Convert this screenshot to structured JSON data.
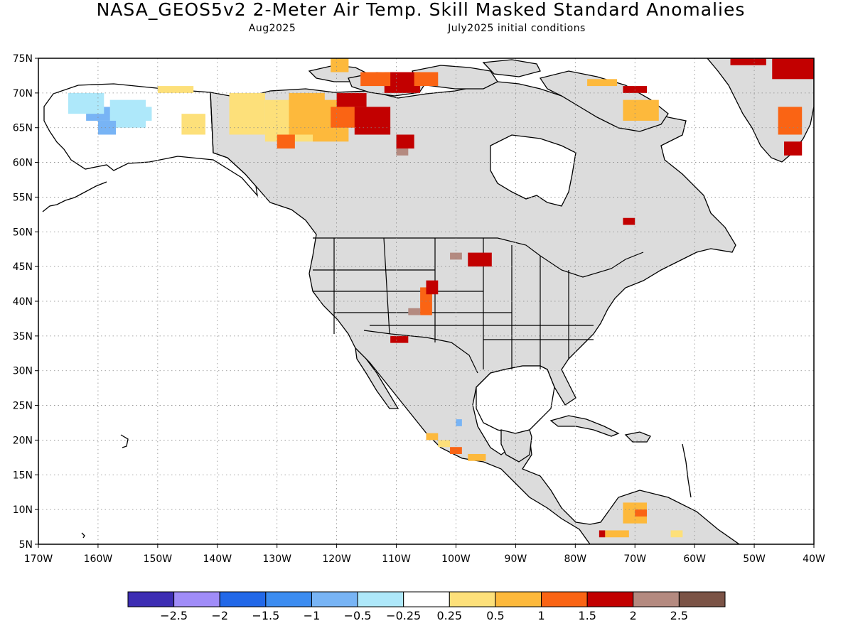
{
  "title": "NASA_GEOS5v2 2-Meter Air Temp. Skill Masked Standard Anomalies",
  "subtitle_left": "Aug2025",
  "subtitle_right": "July2025 initial conditions",
  "map": {
    "projection": "lat-lon",
    "lat_range": [
      5,
      75
    ],
    "lon_range": [
      -170,
      -40
    ],
    "grid": "dotted",
    "mask_color": "#dcdcdc",
    "land_outline_color": "#000000",
    "lat_ticks": [
      {
        "value": 75,
        "label": "75N"
      },
      {
        "value": 70,
        "label": "70N"
      },
      {
        "value": 65,
        "label": "65N"
      },
      {
        "value": 60,
        "label": "60N"
      },
      {
        "value": 55,
        "label": "55N"
      },
      {
        "value": 50,
        "label": "50N"
      },
      {
        "value": 45,
        "label": "45N"
      },
      {
        "value": 40,
        "label": "40N"
      },
      {
        "value": 35,
        "label": "35N"
      },
      {
        "value": 30,
        "label": "30N"
      },
      {
        "value": 25,
        "label": "25N"
      },
      {
        "value": 20,
        "label": "20N"
      },
      {
        "value": 15,
        "label": "15N"
      },
      {
        "value": 10,
        "label": "10N"
      },
      {
        "value": 5,
        "label": "5N"
      }
    ],
    "lon_ticks": [
      {
        "value": -170,
        "label": "170W"
      },
      {
        "value": -160,
        "label": "160W"
      },
      {
        "value": -150,
        "label": "150W"
      },
      {
        "value": -140,
        "label": "140W"
      },
      {
        "value": -130,
        "label": "130W"
      },
      {
        "value": -120,
        "label": "120W"
      },
      {
        "value": -110,
        "label": "110W"
      },
      {
        "value": -100,
        "label": "100W"
      },
      {
        "value": -90,
        "label": "90W"
      },
      {
        "value": -80,
        "label": "80W"
      },
      {
        "value": -70,
        "label": "70W"
      },
      {
        "value": -60,
        "label": "60W"
      },
      {
        "value": -50,
        "label": "50W"
      },
      {
        "value": -40,
        "label": "40W"
      }
    ]
  },
  "colorbar": {
    "colors": [
      "#3d2db3",
      "#a08cf8",
      "#2268e8",
      "#3c8cf0",
      "#78b4f5",
      "#aee8fa",
      "#ffffff",
      "#fde07a",
      "#fdb93c",
      "#fa6414",
      "#c20000",
      "#b48a80",
      "#7b5346"
    ],
    "labels": [
      "-2.5",
      "-2",
      "-1.5",
      "-1",
      "-0.5",
      "-0.25",
      "0.25",
      "0.5",
      "1",
      "1.5",
      "2",
      "2.5"
    ]
  },
  "anomalies": [
    {
      "lon": -162,
      "lat": 66,
      "w": 6,
      "h": 2,
      "c": "#78b4f5"
    },
    {
      "lon": -165,
      "lat": 67,
      "w": 6,
      "h": 3,
      "c": "#aee8fa"
    },
    {
      "lon": -158,
      "lat": 65,
      "w": 6,
      "h": 4,
      "c": "#aee8fa"
    },
    {
      "lon": -160,
      "lat": 64,
      "w": 3,
      "h": 2,
      "c": "#78b4f5"
    },
    {
      "lon": -154,
      "lat": 66,
      "w": 3,
      "h": 2,
      "c": "#aee8fa"
    },
    {
      "lon": -146,
      "lat": 64,
      "w": 4,
      "h": 3,
      "c": "#fde07a"
    },
    {
      "lon": -150,
      "lat": 70,
      "w": 6,
      "h": 1,
      "c": "#fde07a"
    },
    {
      "lon": -138,
      "lat": 64,
      "w": 6,
      "h": 6,
      "c": "#fde07a"
    },
    {
      "lon": -132,
      "lat": 63,
      "w": 8,
      "h": 6,
      "c": "#fde07a"
    },
    {
      "lon": -128,
      "lat": 64,
      "w": 6,
      "h": 6,
      "c": "#fdb93c"
    },
    {
      "lon": -124,
      "lat": 63,
      "w": 6,
      "h": 6,
      "c": "#fdb93c"
    },
    {
      "lon": -121,
      "lat": 65,
      "w": 6,
      "h": 3,
      "c": "#fa6414"
    },
    {
      "lon": -130,
      "lat": 62,
      "w": 3,
      "h": 2,
      "c": "#fa6414"
    },
    {
      "lon": -117,
      "lat": 64,
      "w": 6,
      "h": 4,
      "c": "#c20000"
    },
    {
      "lon": -120,
      "lat": 68,
      "w": 5,
      "h": 2,
      "c": "#c20000"
    },
    {
      "lon": -110,
      "lat": 62,
      "w": 3,
      "h": 2,
      "c": "#c20000"
    },
    {
      "lon": -110,
      "lat": 61,
      "w": 2,
      "h": 1,
      "c": "#b48a80"
    },
    {
      "lon": -112,
      "lat": 70,
      "w": 6,
      "h": 3,
      "c": "#c20000"
    },
    {
      "lon": -116,
      "lat": 71,
      "w": 5,
      "h": 2,
      "c": "#fa6414"
    },
    {
      "lon": -107,
      "lat": 71,
      "w": 4,
      "h": 2,
      "c": "#fa6414"
    },
    {
      "lon": -121,
      "lat": 73,
      "w": 3,
      "h": 2,
      "c": "#fdb93c"
    },
    {
      "lon": -78,
      "lat": 71,
      "w": 5,
      "h": 1,
      "c": "#fdb93c"
    },
    {
      "lon": -72,
      "lat": 66,
      "w": 6,
      "h": 3,
      "c": "#fdb93c"
    },
    {
      "lon": -72,
      "lat": 70,
      "w": 4,
      "h": 1,
      "c": "#c20000"
    },
    {
      "lon": -72,
      "lat": 51,
      "w": 2,
      "h": 1,
      "c": "#c20000"
    },
    {
      "lon": -47,
      "lat": 72,
      "w": 7,
      "h": 5,
      "c": "#c20000"
    },
    {
      "lon": -54,
      "lat": 74,
      "w": 6,
      "h": 3,
      "c": "#c20000"
    },
    {
      "lon": -46,
      "lat": 64,
      "w": 4,
      "h": 4,
      "c": "#fa6414"
    },
    {
      "lon": -45,
      "lat": 61,
      "w": 3,
      "h": 2,
      "c": "#c20000"
    },
    {
      "lon": -98,
      "lat": 45,
      "w": 4,
      "h": 2,
      "c": "#c20000"
    },
    {
      "lon": -101,
      "lat": 46,
      "w": 2,
      "h": 1,
      "c": "#b48a80"
    },
    {
      "lon": -106,
      "lat": 38,
      "w": 2,
      "h": 4,
      "c": "#fa6414"
    },
    {
      "lon": -105,
      "lat": 41,
      "w": 2,
      "h": 2,
      "c": "#c20000"
    },
    {
      "lon": -108,
      "lat": 38,
      "w": 2,
      "h": 1,
      "c": "#b48a80"
    },
    {
      "lon": -111,
      "lat": 34,
      "w": 3,
      "h": 1,
      "c": "#c20000"
    },
    {
      "lon": -105,
      "lat": 20,
      "w": 2,
      "h": 1,
      "c": "#fdb93c"
    },
    {
      "lon": -103,
      "lat": 19,
      "w": 2,
      "h": 1,
      "c": "#fde07a"
    },
    {
      "lon": -98,
      "lat": 17,
      "w": 3,
      "h": 1,
      "c": "#fdb93c"
    },
    {
      "lon": -101,
      "lat": 18,
      "w": 2,
      "h": 1,
      "c": "#fa6414"
    },
    {
      "lon": -100,
      "lat": 22,
      "w": 1,
      "h": 1,
      "c": "#78b4f5"
    },
    {
      "lon": -72,
      "lat": 8,
      "w": 4,
      "h": 3,
      "c": "#fdb93c"
    },
    {
      "lon": -70,
      "lat": 9,
      "w": 2,
      "h": 1,
      "c": "#fa6414"
    },
    {
      "lon": -75,
      "lat": 6,
      "w": 4,
      "h": 1,
      "c": "#fdb93c"
    },
    {
      "lon": -76,
      "lat": 6,
      "w": 1,
      "h": 1,
      "c": "#c20000"
    },
    {
      "lon": -64,
      "lat": 6,
      "w": 2,
      "h": 1,
      "c": "#fde07a"
    }
  ]
}
